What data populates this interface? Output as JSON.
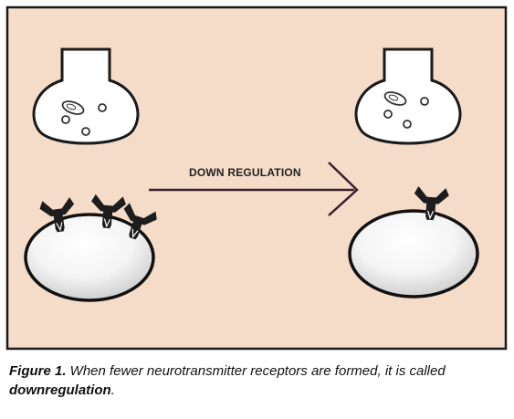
{
  "figure": {
    "arrow_label": "DOWN REGULATION",
    "colors": {
      "panel_background": "#f5dcc8",
      "panel_border": "#1a1a1a",
      "receptor_fill": "#1d1d1d",
      "cell_shade": "#c9c9c9"
    },
    "receptor_count": {
      "before": 3,
      "after": 1
    }
  },
  "caption": {
    "figure_label": "Figure 1.",
    "text_part1": " When fewer neurotransmitter receptors are formed, it is called ",
    "emphasis": "downregulation",
    "text_part2": "."
  }
}
